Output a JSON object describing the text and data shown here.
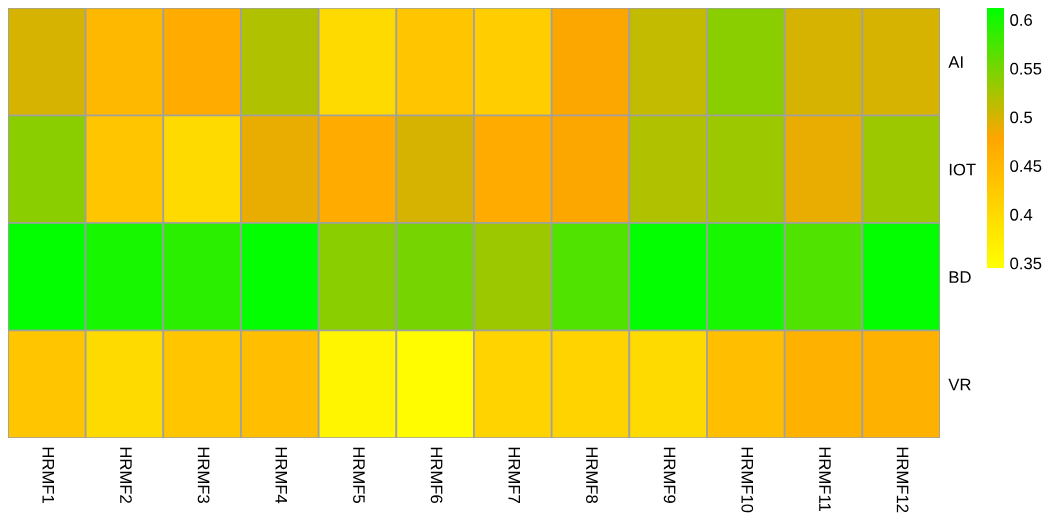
{
  "chart_data": {
    "type": "heatmap",
    "categories": [
      "HRMF1",
      "HRMF2",
      "HRMF3",
      "HRMF4",
      "HRMF5",
      "HRMF6",
      "HRMF7",
      "HRMF8",
      "HRMF9",
      "HRMF10",
      "HRMF11",
      "HRMF12"
    ],
    "y_categories": [
      "AI",
      "IOT",
      "BD",
      "VR"
    ],
    "cells": [
      [
        0.5,
        0.45,
        0.47,
        0.52,
        0.4,
        0.43,
        0.42,
        0.48,
        0.51,
        0.54,
        0.5,
        0.5
      ],
      [
        0.54,
        0.43,
        0.4,
        0.49,
        0.47,
        0.5,
        0.47,
        0.48,
        0.52,
        0.53,
        0.49,
        0.53
      ],
      [
        0.61,
        0.6,
        0.59,
        0.61,
        0.54,
        0.55,
        0.53,
        0.57,
        0.61,
        0.6,
        0.57,
        0.61
      ],
      [
        0.43,
        0.4,
        0.43,
        0.44,
        0.36,
        0.35,
        0.41,
        0.41,
        0.4,
        0.44,
        0.46,
        0.46
      ]
    ],
    "clim": [
      0.345,
      0.612
    ],
    "cticks": [
      0.35,
      0.4,
      0.45,
      0.5,
      0.55,
      0.6
    ]
  }
}
